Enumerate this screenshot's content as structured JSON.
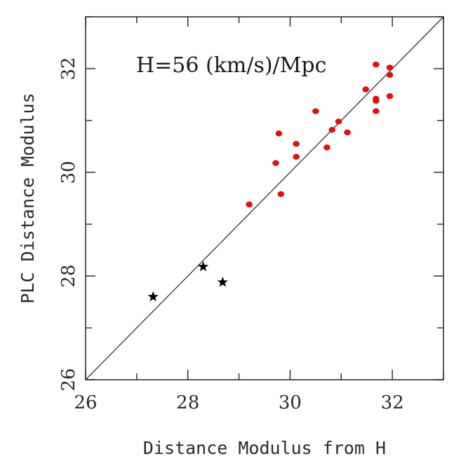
{
  "chart_data": {
    "type": "scatter",
    "xlabel": "Distance Modulus from H",
    "ylabel": "PLC Distance Modulus",
    "xlim": [
      26,
      33
    ],
    "ylim": [
      26,
      33
    ],
    "x_ticks": [
      "26",
      "28",
      "30",
      "32"
    ],
    "y_ticks": [
      "26",
      "28",
      "30",
      "32"
    ],
    "grid": false,
    "annotation": "H=56 (km/s)/Mpc",
    "reference_line": {
      "x": [
        26,
        33
      ],
      "y": [
        26,
        33
      ]
    },
    "series": [
      {
        "marker": "circle",
        "color": "#e01010",
        "points": [
          [
            29.2,
            29.38
          ],
          [
            29.72,
            30.18
          ],
          [
            29.78,
            30.75
          ],
          [
            29.82,
            29.58
          ],
          [
            30.12,
            30.55
          ],
          [
            30.12,
            30.3
          ],
          [
            30.5,
            31.18
          ],
          [
            30.72,
            30.48
          ],
          [
            30.82,
            30.82
          ],
          [
            30.95,
            30.98
          ],
          [
            31.12,
            30.77
          ],
          [
            31.48,
            31.6
          ],
          [
            31.68,
            32.08
          ],
          [
            31.68,
            31.42
          ],
          [
            31.68,
            31.38
          ],
          [
            31.68,
            31.18
          ],
          [
            31.95,
            32.02
          ],
          [
            31.95,
            31.88
          ],
          [
            31.95,
            31.47
          ]
        ]
      },
      {
        "marker": "star",
        "color": "#000000",
        "points": [
          [
            27.32,
            27.6
          ],
          [
            28.3,
            28.18
          ],
          [
            28.68,
            27.88
          ]
        ]
      }
    ]
  }
}
